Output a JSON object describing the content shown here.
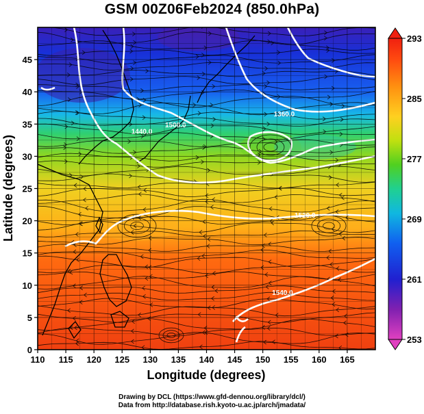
{
  "title": "GSM 00Z06Feb2024 (850.0hPa)",
  "x_axis": {
    "label": "Longitude (degrees)",
    "ticks": [
      "110",
      "115",
      "120",
      "125",
      "130",
      "135",
      "140",
      "145",
      "150",
      "155",
      "160",
      "165"
    ],
    "range": [
      110,
      170
    ]
  },
  "y_axis": {
    "label": "Latitude  (degrees)",
    "ticks": [
      "0",
      "5",
      "10",
      "15",
      "20",
      "25",
      "30",
      "35",
      "40",
      "45"
    ],
    "range": [
      0,
      50
    ]
  },
  "colorbar": {
    "ticks": [
      "293",
      "285",
      "277",
      "269",
      "261",
      "253"
    ],
    "range": [
      253,
      293
    ],
    "colors": [
      "#e040c0",
      "#8020b0",
      "#2020d0",
      "#1060f0",
      "#10b8e0",
      "#20d090",
      "#50d020",
      "#c0e010",
      "#ffd020",
      "#ff9010",
      "#ff4a10",
      "#f02010"
    ]
  },
  "contour_labels": [
    {
      "text": "1440.0",
      "lon": 128.5,
      "lat": 33.5
    },
    {
      "text": "1500.0",
      "lon": 134.5,
      "lat": 34.5
    },
    {
      "text": "1360.0",
      "lon": 153.8,
      "lat": 36.2
    },
    {
      "text": "1520.0",
      "lon": 157.5,
      "lat": 20.5
    },
    {
      "text": "1540.0",
      "lon": 153.5,
      "lat": 8.5
    }
  ],
  "credits": {
    "line1": "Drawing by DCL (https://www.gfd-dennou.org/library/dcl/)",
    "line2": "Data from http://database.rish.kyoto-u.ac.jp/arch/jmadata/"
  }
}
